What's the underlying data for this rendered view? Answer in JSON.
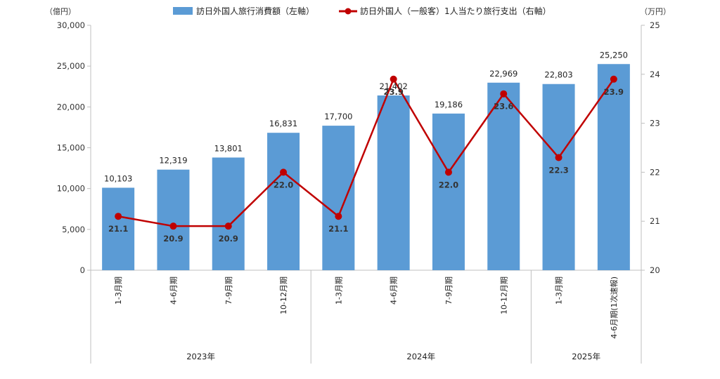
{
  "chart_data": {
    "type": "bar",
    "categories": [
      "1-3月期",
      "4-6月期",
      "7-9月期",
      "10-12月期",
      "1-3月期",
      "4-6月期",
      "7-9月期",
      "10-12月期",
      "1-3月期",
      "4-6月期(1次速報)"
    ],
    "groups": [
      {
        "label": "2023年",
        "count": 4
      },
      {
        "label": "2024年",
        "count": 4
      },
      {
        "label": "2025年",
        "count": 2
      }
    ],
    "series": [
      {
        "name": "訪日外国人旅行消費額（左軸）",
        "type": "bar",
        "axis": "left",
        "color": "#5b9bd5",
        "values": [
          10103,
          12319,
          13801,
          16831,
          17700,
          21402,
          19186,
          22969,
          22803,
          25250
        ],
        "labels": [
          "10,103",
          "12,319",
          "13,801",
          "16,831",
          "17,700",
          "21,402",
          "19,186",
          "22,969",
          "22,803",
          "25,250"
        ]
      },
      {
        "name": "訪日外国人（一般客）1人当たり旅行支出（右軸）",
        "type": "line",
        "axis": "right",
        "color": "#c00000",
        "values": [
          21.1,
          20.9,
          20.9,
          22.0,
          21.1,
          23.9,
          22.0,
          23.6,
          22.3,
          23.9
        ],
        "labels": [
          "21.1",
          "20.9",
          "20.9",
          "22.0",
          "21.1",
          "23.9",
          "22.0",
          "23.6",
          "22.3",
          "23.9"
        ]
      }
    ],
    "left_axis": {
      "unit": "（億円）",
      "ylim": [
        0,
        30000
      ],
      "ticks": [
        0,
        5000,
        10000,
        15000,
        20000,
        25000,
        30000
      ],
      "tick_labels": [
        "0",
        "5,000",
        "10,000",
        "15,000",
        "20,000",
        "25,000",
        "30,000"
      ]
    },
    "right_axis": {
      "unit": "（万円）",
      "ylim": [
        20,
        25
      ],
      "ticks": [
        20,
        21,
        22,
        23,
        24,
        25
      ],
      "tick_labels": [
        "20",
        "21",
        "22",
        "23",
        "24",
        "25"
      ]
    },
    "legend_position": "top",
    "grid": false
  }
}
